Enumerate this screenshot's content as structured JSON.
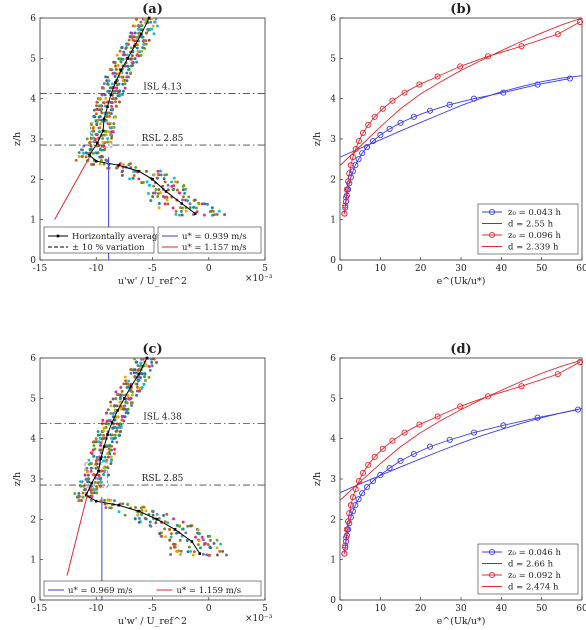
{
  "chart_data": [
    {
      "id": "a",
      "type": "scatter",
      "title": "(a)",
      "xlabel": "u'w' / U_ref^2",
      "ylabel": "z/h",
      "xlim": [
        -15,
        5
      ],
      "ylim": [
        0,
        6
      ],
      "x_scale_label": "×10⁻³",
      "xticks": [
        -15,
        -10,
        -5,
        0,
        5
      ],
      "yticks": [
        0,
        1,
        2,
        3,
        4,
        5,
        6
      ],
      "grid": false,
      "legend_left": [
        {
          "label": "Horizontally averaged",
          "color": "#000000",
          "style": "solid-marker"
        },
        {
          "label": "± 10 % variation",
          "color": "#000000",
          "style": "dashed"
        }
      ],
      "legend_right": [
        {
          "label": "u* = 0.939 m/s",
          "color": "#3c3cf0"
        },
        {
          "label": "u* = 1.157 m/s",
          "color": "#e8262c"
        }
      ],
      "isl": {
        "label": "ISL 4.13",
        "value": 4.13
      },
      "rsl": {
        "label": "RSL 2.85",
        "value": 2.85
      },
      "averaged": {
        "x": [
          -1.2,
          -2.4,
          -3.8,
          -5.0,
          -6.2,
          -8.0,
          -10.0,
          -10.6,
          -9.9,
          -9.4,
          -9.3,
          -9.0,
          -8.7,
          -8.3,
          -7.8,
          -7.2,
          -6.6,
          -6.0,
          -5.3
        ],
        "y": [
          1.15,
          1.4,
          1.7,
          2.0,
          2.2,
          2.35,
          2.45,
          2.6,
          2.9,
          3.2,
          3.5,
          3.8,
          4.1,
          4.4,
          4.7,
          5.0,
          5.3,
          5.6,
          6.0
        ]
      },
      "blue_line_x": -8.9,
      "red_line": {
        "x": [
          -13.7,
          -10.6
        ],
        "y": [
          1.0,
          2.55
        ]
      }
    },
    {
      "id": "b",
      "type": "line",
      "title": "(b)",
      "xlabel": "e^(Uk/u*)",
      "ylabel": "z/h",
      "xlim": [
        0,
        60
      ],
      "ylim": [
        0,
        6
      ],
      "xticks": [
        0,
        10,
        20,
        30,
        40,
        50,
        60
      ],
      "yticks": [
        0,
        1,
        2,
        3,
        4,
        5,
        6
      ],
      "grid": false,
      "legend": [
        {
          "label": "z₀ = 0.043 h",
          "color": "#3c3cf0",
          "style": "marker"
        },
        {
          "label": "d = 2.55 h",
          "color": "#3c3cf0",
          "style": "line"
        },
        {
          "label": "z₀ = 0.096 h",
          "color": "#e8262c",
          "style": "marker"
        },
        {
          "label": "d = 2.339 h",
          "color": "#e8262c",
          "style": "line"
        }
      ],
      "series": [
        {
          "color": "#3c3cf0",
          "style": "marker",
          "x": [
            1.1,
            1.3,
            1.5,
            1.7,
            2.0,
            2.3,
            2.7,
            3.2,
            3.8,
            4.6,
            5.5,
            6.7,
            8.2,
            10.0,
            12.3,
            15.0,
            18.3,
            22.3,
            27.2,
            33.2,
            40.5,
            49.0,
            57.0
          ],
          "y": [
            1.15,
            1.3,
            1.45,
            1.6,
            1.75,
            1.9,
            2.05,
            2.2,
            2.35,
            2.5,
            2.65,
            2.8,
            2.95,
            3.1,
            3.25,
            3.4,
            3.55,
            3.7,
            3.85,
            4.0,
            4.15,
            4.35,
            4.5
          ]
        },
        {
          "color": "#3c3cf0",
          "style": "line",
          "x": [
            0,
            5,
            10,
            15,
            20,
            25,
            30,
            35,
            40,
            45,
            50,
            55,
            60
          ],
          "y": [
            2.55,
            2.77,
            2.98,
            3.2,
            3.41,
            3.62,
            3.83,
            4.01,
            4.17,
            4.3,
            4.42,
            4.51,
            4.57
          ]
        },
        {
          "color": "#e8262c",
          "style": "marker",
          "x": [
            1.1,
            1.3,
            1.5,
            1.7,
            2.0,
            2.3,
            2.7,
            3.2,
            3.9,
            4.7,
            5.7,
            7.0,
            8.6,
            10.6,
            13.0,
            16.0,
            19.7,
            24.2,
            29.8,
            36.7,
            45.0,
            54.0,
            59.5
          ],
          "y": [
            1.15,
            1.35,
            1.55,
            1.75,
            1.95,
            2.15,
            2.35,
            2.55,
            2.75,
            2.95,
            3.15,
            3.35,
            3.55,
            3.75,
            3.95,
            4.15,
            4.35,
            4.55,
            4.8,
            5.05,
            5.3,
            5.6,
            5.9
          ]
        },
        {
          "color": "#e8262c",
          "style": "line",
          "x": [
            0,
            5,
            10,
            15,
            20,
            25,
            30,
            35,
            40,
            45,
            50,
            55,
            60
          ],
          "y": [
            2.34,
            2.82,
            3.3,
            3.75,
            4.12,
            4.42,
            4.7,
            4.95,
            5.19,
            5.42,
            5.63,
            5.83,
            6.0
          ]
        }
      ]
    },
    {
      "id": "c",
      "type": "scatter",
      "title": "(c)",
      "xlabel": "u'w' / U_ref^2",
      "ylabel": "z/h",
      "xlim": [
        -15,
        5
      ],
      "ylim": [
        0,
        6
      ],
      "x_scale_label": "×10⁻³",
      "xticks": [
        -15,
        -10,
        -5,
        0,
        5
      ],
      "yticks": [
        0,
        1,
        2,
        3,
        4,
        5,
        6
      ],
      "grid": false,
      "legend_left": [],
      "legend_right": [
        {
          "label": "u* = 0.969 m/s",
          "color": "#3c3cf0"
        },
        {
          "label": "u* = 1.159 m/s",
          "color": "#e8262c"
        }
      ],
      "isl": {
        "label": "ISL 4.38",
        "value": 4.38
      },
      "rsl": {
        "label": "RSL 2.85",
        "value": 2.85
      },
      "averaged": {
        "x": [
          -0.8,
          -1.5,
          -3.0,
          -4.6,
          -6.2,
          -8.0,
          -10.0,
          -10.9,
          -10.4,
          -9.8,
          -9.6,
          -9.3,
          -9.0,
          -8.6,
          -8.1,
          -7.5,
          -6.9,
          -6.2,
          -5.5
        ],
        "y": [
          1.15,
          1.45,
          1.75,
          2.0,
          2.2,
          2.35,
          2.45,
          2.6,
          2.9,
          3.2,
          3.5,
          3.8,
          4.1,
          4.4,
          4.7,
          5.0,
          5.3,
          5.6,
          6.0
        ]
      },
      "blue_line_x": -9.5,
      "red_line": {
        "x": [
          -12.6,
          -10.8
        ],
        "y": [
          0.6,
          2.6
        ]
      }
    },
    {
      "id": "d",
      "type": "line",
      "title": "(d)",
      "xlabel": "e^(Uk/u*)",
      "ylabel": "z/h",
      "xlim": [
        0,
        60
      ],
      "ylim": [
        0,
        6
      ],
      "xticks": [
        0,
        10,
        20,
        30,
        40,
        50,
        60
      ],
      "yticks": [
        0,
        1,
        2,
        3,
        4,
        5,
        6
      ],
      "grid": false,
      "legend": [
        {
          "label": "z₀ = 0.046 h",
          "color": "#3c3cf0",
          "style": "marker"
        },
        {
          "label": "d = 2.66 h",
          "color": "#3c3cf0",
          "style": "line"
        },
        {
          "label": "z₀ = 0.092 h",
          "color": "#e8262c",
          "style": "marker"
        },
        {
          "label": "d = 2.474 h",
          "color": "#e8262c",
          "style": "line"
        }
      ],
      "series": [
        {
          "color": "#3c3cf0",
          "style": "marker",
          "x": [
            1.1,
            1.3,
            1.5,
            1.7,
            2.0,
            2.3,
            2.7,
            3.2,
            3.8,
            4.6,
            5.5,
            6.7,
            8.2,
            10.0,
            12.3,
            15.0,
            18.3,
            22.3,
            27.2,
            33.2,
            40.5,
            49.0,
            59.0
          ],
          "y": [
            1.15,
            1.3,
            1.45,
            1.6,
            1.75,
            1.9,
            2.05,
            2.2,
            2.35,
            2.5,
            2.65,
            2.8,
            2.95,
            3.1,
            3.27,
            3.45,
            3.62,
            3.8,
            3.97,
            4.15,
            4.33,
            4.52,
            4.72
          ]
        },
        {
          "color": "#3c3cf0",
          "style": "line",
          "x": [
            0,
            5,
            10,
            15,
            20,
            25,
            30,
            35,
            40,
            45,
            50,
            55,
            60
          ],
          "y": [
            2.66,
            2.88,
            3.09,
            3.3,
            3.5,
            3.7,
            3.89,
            4.07,
            4.23,
            4.38,
            4.52,
            4.64,
            4.75
          ]
        },
        {
          "color": "#e8262c",
          "style": "marker",
          "x": [
            1.1,
            1.3,
            1.5,
            1.7,
            2.0,
            2.3,
            2.7,
            3.2,
            3.9,
            4.7,
            5.7,
            7.0,
            8.6,
            10.6,
            13.0,
            16.0,
            19.7,
            24.2,
            29.8,
            36.7,
            45.0,
            54.0,
            59.5
          ],
          "y": [
            1.15,
            1.35,
            1.55,
            1.75,
            1.95,
            2.15,
            2.35,
            2.55,
            2.75,
            2.95,
            3.15,
            3.35,
            3.55,
            3.75,
            3.95,
            4.15,
            4.35,
            4.55,
            4.8,
            5.05,
            5.3,
            5.6,
            5.9
          ]
        },
        {
          "color": "#e8262c",
          "style": "line",
          "x": [
            0,
            5,
            10,
            15,
            20,
            25,
            30,
            35,
            40,
            45,
            50,
            55,
            60
          ],
          "y": [
            2.47,
            2.93,
            3.38,
            3.8,
            4.15,
            4.45,
            4.72,
            4.97,
            5.2,
            5.42,
            5.62,
            5.8,
            5.95
          ]
        }
      ]
    }
  ]
}
